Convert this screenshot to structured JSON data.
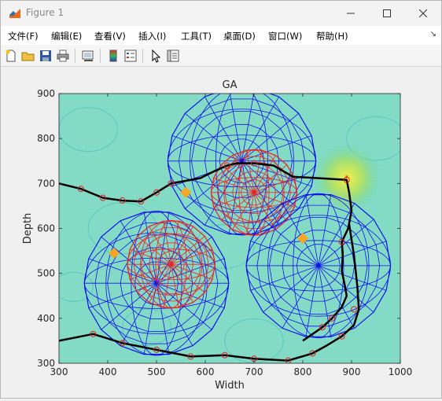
{
  "window": {
    "title": "Figure 1"
  },
  "menu": [
    {
      "label": "文件(F)",
      "name": "menu-file"
    },
    {
      "label": "编辑(E)",
      "name": "menu-edit"
    },
    {
      "label": "查看(V)",
      "name": "menu-view"
    },
    {
      "label": "插入(I)",
      "name": "menu-insert"
    },
    {
      "label": "工具(T)",
      "name": "menu-tools"
    },
    {
      "label": "桌面(D)",
      "name": "menu-desktop"
    },
    {
      "label": "窗口(W)",
      "name": "menu-window"
    },
    {
      "label": "帮助(H)",
      "name": "menu-help"
    }
  ],
  "toolbar": [
    {
      "icon": "new-figure-icon"
    },
    {
      "icon": "open-file-icon"
    },
    {
      "icon": "save-icon"
    },
    {
      "icon": "print-icon"
    },
    {
      "icon": "link-plot-icon"
    },
    {
      "icon": "colorbar-icon"
    },
    {
      "icon": "legend-icon"
    },
    {
      "icon": "pointer-icon"
    },
    {
      "icon": "property-inspector-icon"
    }
  ],
  "chart_data": {
    "type": "line",
    "title": "GA",
    "xlabel": "Width",
    "ylabel": "Depth",
    "xlim": [
      300,
      1000
    ],
    "ylim": [
      300,
      900
    ],
    "xticks": [
      300,
      400,
      500,
      600,
      700,
      800,
      900,
      1000
    ],
    "yticks": [
      300,
      400,
      500,
      600,
      700,
      800,
      900
    ],
    "grid": true,
    "background": "contour field",
    "obstacles": [
      {
        "center": [
          675,
          750
        ],
        "radius": 152,
        "color": "#1010ee"
      },
      {
        "center": [
          700,
          680
        ],
        "radius": 88,
        "color": "#ee2020"
      },
      {
        "center": [
          500,
          478
        ],
        "radius": 148,
        "color": "#1010ee"
      },
      {
        "center": [
          530,
          520
        ],
        "radius": 90,
        "color": "#ee2020"
      },
      {
        "center": [
          832,
          517
        ],
        "radius": 148,
        "color": "#1010ee"
      }
    ],
    "targets": [
      {
        "x": 413,
        "y": 545,
        "color": "#f5a623"
      },
      {
        "x": 560,
        "y": 680,
        "color": "#f5a623"
      },
      {
        "x": 800,
        "y": 578,
        "color": "#f5a623"
      }
    ],
    "hotspot": {
      "x": 890,
      "y": 712
    },
    "series": [
      {
        "color": "#000000",
        "x": [
          300,
          345,
          390,
          430,
          468,
          500,
          530,
          555,
          590,
          620,
          645,
          665,
          685,
          700,
          740,
          780,
          830,
          890,
          895,
          900,
          893,
          880,
          882,
          880,
          885,
          890,
          880,
          860,
          840,
          800
        ],
        "y": [
          700,
          688,
          668,
          662,
          660,
          680,
          700,
          705,
          712,
          728,
          740,
          745,
          745,
          745,
          740,
          715,
          712,
          708,
          680,
          640,
          600,
          570,
          540,
          505,
          480,
          450,
          425,
          400,
          380,
          350
        ]
      },
      {
        "color": "#000000",
        "x": [
          300,
          370,
          430,
          500,
          570,
          640,
          700,
          770,
          820,
          850,
          880,
          905,
          915,
          912,
          905,
          895
        ],
        "y": [
          350,
          365,
          345,
          330,
          315,
          318,
          310,
          306,
          322,
          340,
          360,
          385,
          420,
          470,
          540,
          610
        ]
      }
    ],
    "markers_x": [
      345,
      390,
      430,
      468,
      500,
      530,
      645,
      700,
      770,
      820,
      880,
      905,
      370,
      430,
      500,
      570,
      640,
      700,
      890,
      860,
      840,
      880
    ],
    "markers_y": [
      688,
      668,
      662,
      660,
      680,
      700,
      740,
      745,
      306,
      322,
      360,
      420,
      365,
      345,
      330,
      315,
      318,
      310,
      708,
      400,
      380,
      570
    ]
  }
}
